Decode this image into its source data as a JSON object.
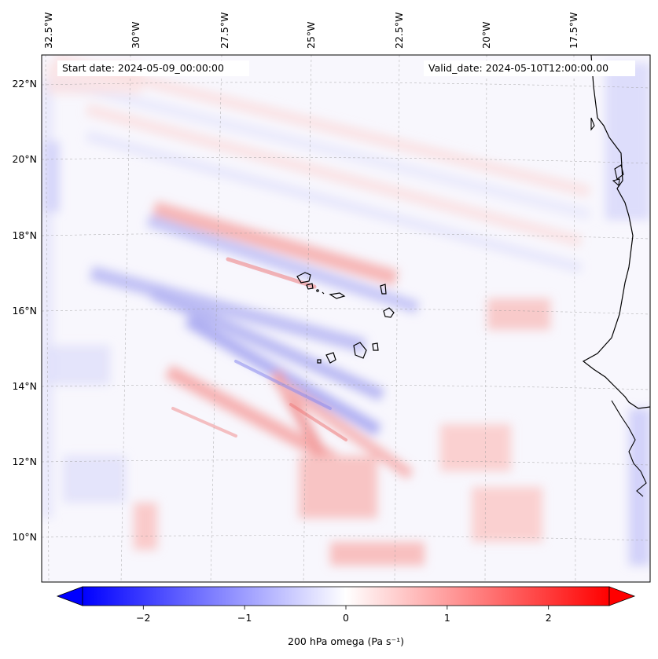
{
  "map": {
    "start_label": "Start date: 2024-05-09_00:00:00",
    "valid_label": "Valid_date: 2024-05-10T12:00:00.00",
    "lon_labels": [
      "32.5°W",
      "30°W",
      "27.5°W",
      "25°W",
      "22.5°W",
      "20°W",
      "17.5°W"
    ],
    "lat_labels": [
      "22°N",
      "20°N",
      "18°N",
      "16°N",
      "14°N",
      "12°N",
      "10°N"
    ],
    "field_colors": {
      "negative": "#0000ff",
      "zero": "#ffffff",
      "positive": "#ff0000"
    }
  },
  "colorbar": {
    "label": "200 hPa omega (Pa s⁻¹)",
    "ticks": [
      "−2",
      "−1",
      "0",
      "1",
      "2"
    ],
    "tick_values": [
      -2,
      -1,
      0,
      1,
      2
    ],
    "vmin": -2.6,
    "vmax": 2.6
  }
}
